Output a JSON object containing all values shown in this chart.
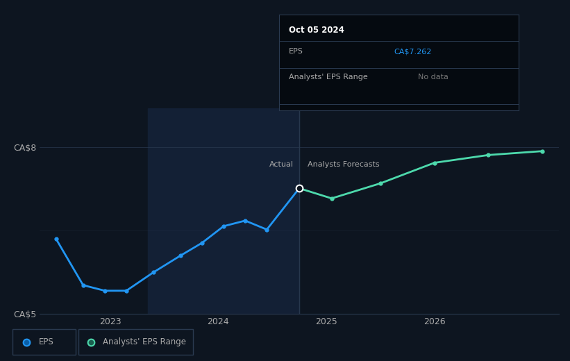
{
  "bg_color": "#0d1520",
  "plot_bg_color": "#0d1520",
  "highlight_color": "#132035",
  "line_color_actual": "#2196F3",
  "line_color_forecast": "#4dd9ac",
  "grid_color": "#2a3a50",
  "text_color": "#aaaaaa",
  "white": "#ffffff",
  "tooltip_bg": "#050a10",
  "tooltip_border": "#2a3a50",
  "actual_label": "Actual",
  "forecast_label": "Analysts Forecasts",
  "tooltip_date": "Oct 05 2024",
  "tooltip_eps_label": "EPS",
  "tooltip_eps_value": "CA$7.262",
  "tooltip_range_label": "Analysts' EPS Range",
  "tooltip_range_value": "No data",
  "eps_color_value": "#2196F3",
  "legend_eps": "EPS",
  "legend_range": "Analysts' EPS Range",
  "actual_x": [
    2022.5,
    2022.75,
    2022.95,
    2023.15,
    2023.4,
    2023.65,
    2023.85,
    2024.05,
    2024.25,
    2024.45,
    2024.75
  ],
  "actual_y": [
    6.35,
    5.52,
    5.42,
    5.42,
    5.75,
    6.05,
    6.28,
    6.58,
    6.68,
    6.52,
    7.262
  ],
  "forecast_x": [
    2024.75,
    2025.05,
    2025.5,
    2026.0,
    2026.5,
    2027.0
  ],
  "forecast_y": [
    7.262,
    7.08,
    7.35,
    7.72,
    7.86,
    7.93
  ],
  "divider_x": 2024.75,
  "xmin": 2022.35,
  "xmax": 2027.15,
  "ymin": 5.0,
  "ymax": 8.7,
  "ytick_vals": [
    5.0,
    8.0
  ],
  "ytick_labels": [
    "CA$5",
    "CA$8"
  ],
  "xtick_vals": [
    2023.0,
    2024.0,
    2025.0,
    2026.0
  ],
  "xtick_labels": [
    "2023",
    "2024",
    "2025",
    "2026"
  ],
  "highlight_start": 2023.35,
  "highlight_end": 2024.75
}
